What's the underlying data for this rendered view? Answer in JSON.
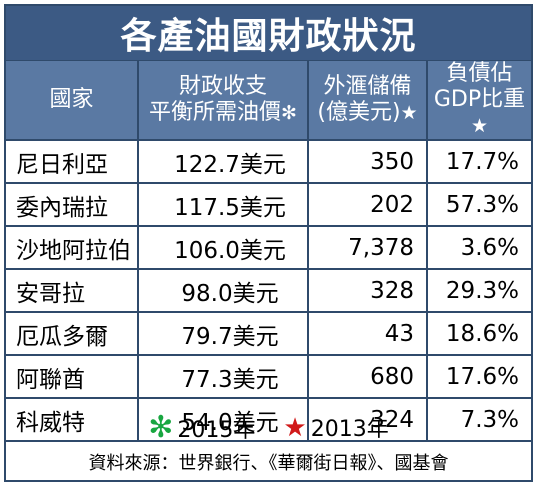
{
  "title": "各產油國財政狀況",
  "headers": {
    "country": "國家",
    "price_line1": "財政收支",
    "price_line2": "平衡所需油價",
    "price_mark": "✻",
    "reserves_line1": "外滙儲備",
    "reserves_line2": "(億美元)",
    "reserves_mark": "★",
    "debt_line1": "負債佔",
    "debt_line2": "GDP比重",
    "debt_mark": "★"
  },
  "rows": [
    {
      "country": "尼日利亞",
      "price": "122.7美元",
      "reserves": "350",
      "debt": "17.7%"
    },
    {
      "country": "委內瑞拉",
      "price": "117.5美元",
      "reserves": "202",
      "debt": "57.3%"
    },
    {
      "country": "沙地阿拉伯",
      "price": "106.0美元",
      "reserves": "7,378",
      "debt": "3.6%"
    },
    {
      "country": "安哥拉",
      "price": "98.0美元",
      "reserves": "328",
      "debt": "29.3%"
    },
    {
      "country": "厄瓜多爾",
      "price": "79.7美元",
      "reserves": "43",
      "debt": "18.6%"
    },
    {
      "country": "阿聯酋",
      "price": "77.3美元",
      "reserves": "680",
      "debt": "17.6%"
    },
    {
      "country": "科威特",
      "price": "54.0美元",
      "reserves": "324",
      "debt": "7.3%"
    }
  ],
  "legend": {
    "green_mark": "✻",
    "green_label": "2015年",
    "green_color": "#18a640",
    "red_mark": "★",
    "red_label": "2013年",
    "red_color": "#d11a1a"
  },
  "source": "資料來源：世界銀行、《華爾街日報》、國基會"
}
